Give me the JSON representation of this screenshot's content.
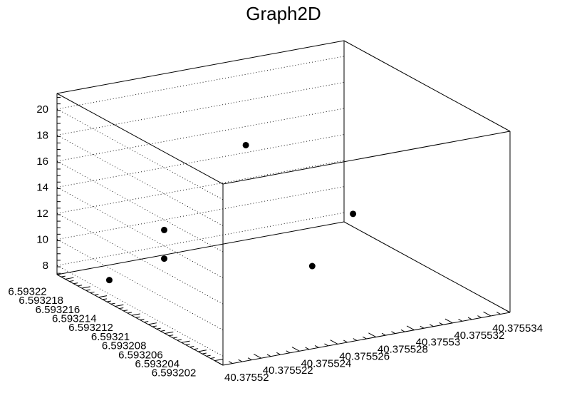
{
  "chart_data": {
    "type": "scatter",
    "title": "Graph2D",
    "xlabel": "",
    "ylabel": "",
    "zlabel": "",
    "x_ticks": [
      "40.37552",
      "40.375522",
      "40.375524",
      "40.375526",
      "40.375528",
      "40.37553",
      "40.375532",
      "40.375534"
    ],
    "y_ticks": [
      "6.593202",
      "6.593204",
      "6.593206",
      "6.593208",
      "6.59321",
      "6.593212",
      "6.593214",
      "6.593216",
      "6.593218",
      "6.59322"
    ],
    "z_ticks": [
      "8",
      "10",
      "12",
      "14",
      "16",
      "18",
      "20"
    ],
    "xlim": [
      40.37552,
      40.375535
    ],
    "ylim": [
      6.593201,
      6.593221
    ],
    "zlim": [
      7.3,
      21.2
    ],
    "grid": true,
    "points": [
      {
        "x": 40.375521,
        "y": 6.593217,
        "z": 8.0
      },
      {
        "x": 40.375523,
        "y": 6.593215,
        "z": 9.8
      },
      {
        "x": 40.375523,
        "y": 6.593215,
        "z": 12.0
      },
      {
        "x": 40.375529,
        "y": 6.593211,
        "z": 9.0
      },
      {
        "x": 40.375529,
        "y": 6.593219,
        "z": 15.5
      },
      {
        "x": 40.375532,
        "y": 6.593213,
        "z": 11.5
      }
    ]
  }
}
